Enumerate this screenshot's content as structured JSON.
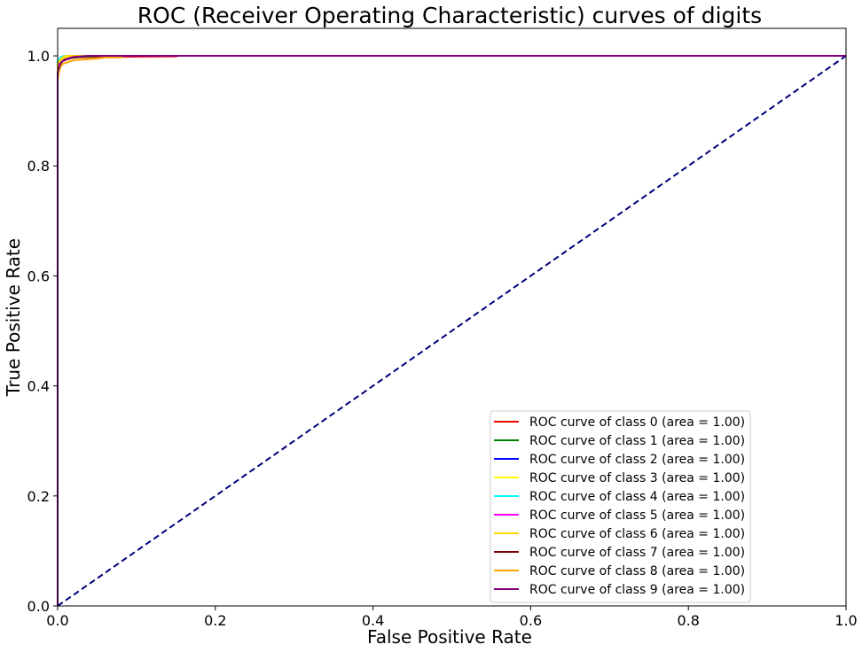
{
  "chart_data": {
    "type": "line",
    "title": "ROC (Receiver Operating Characteristic) curves of digits",
    "xlabel": "False Positive Rate",
    "ylabel": "True Positive Rate",
    "xlim": [
      0.0,
      1.0
    ],
    "ylim": [
      0.0,
      1.05
    ],
    "xticks": [
      "0.0",
      "0.2",
      "0.4",
      "0.6",
      "0.8",
      "1.0"
    ],
    "yticks": [
      "0.0",
      "0.2",
      "0.4",
      "0.6",
      "0.8",
      "1.0"
    ],
    "grid": false,
    "legend_position": "lower-right",
    "reference_line": {
      "x": [
        0,
        1
      ],
      "y": [
        0,
        1
      ],
      "color": "#000080",
      "style": "dashed"
    },
    "series": [
      {
        "name": "ROC curve of class 0 (area = 1.00)",
        "color": "#ff0000",
        "x": [
          0,
          0.0,
          0.002,
          0.004,
          0.01,
          0.02,
          0.05,
          0.15,
          0.153,
          1.0
        ],
        "y": [
          0,
          0.97,
          0.985,
          0.99,
          0.995,
          0.997,
          0.998,
          0.999,
          1.0,
          1.0
        ]
      },
      {
        "name": "ROC curve of class 1 (area = 1.00)",
        "color": "#008000",
        "x": [
          0,
          0.0,
          0.002,
          0.005,
          0.01,
          0.03,
          0.06,
          1.0
        ],
        "y": [
          0,
          0.975,
          0.985,
          0.99,
          0.995,
          0.998,
          1.0,
          1.0
        ]
      },
      {
        "name": "ROC curve of class 2 (area = 1.00)",
        "color": "#0000ff",
        "x": [
          0,
          0.0,
          0.002,
          0.006,
          0.012,
          0.03,
          1.0
        ],
        "y": [
          0,
          0.985,
          0.99,
          0.995,
          0.998,
          1.0,
          1.0
        ]
      },
      {
        "name": "ROC curve of class 3 (area = 1.00)",
        "color": "#ffff00",
        "x": [
          0,
          0.0,
          0.002,
          0.005,
          0.012,
          0.02,
          1.0
        ],
        "y": [
          0,
          0.98,
          0.988,
          0.993,
          0.998,
          1.0,
          1.0
        ]
      },
      {
        "name": "ROC curve of class 4 (area = 1.00)",
        "color": "#00ffff",
        "x": [
          0,
          0.0,
          0.002,
          0.004,
          0.008,
          1.0
        ],
        "y": [
          0,
          0.99,
          0.995,
          0.998,
          1.0,
          1.0
        ]
      },
      {
        "name": "ROC curve of class 5 (area = 1.00)",
        "color": "#ff00ff",
        "x": [
          0,
          0.0,
          0.002,
          0.006,
          0.015,
          0.03,
          1.0
        ],
        "y": [
          0,
          0.978,
          0.985,
          0.99,
          0.996,
          1.0,
          1.0
        ]
      },
      {
        "name": "ROC curve of class 6 (area = 1.00)",
        "color": "#ffd700",
        "x": [
          0,
          0.0,
          0.002,
          0.005,
          0.01,
          1.0
        ],
        "y": [
          0,
          0.985,
          0.99,
          0.996,
          1.0,
          1.0
        ]
      },
      {
        "name": "ROC curve of class 7 (area = 1.00)",
        "color": "#800000",
        "x": [
          0,
          0.0,
          0.002,
          0.003,
          0.006,
          0.01,
          0.02,
          0.04,
          1.0
        ],
        "y": [
          0,
          0.96,
          0.975,
          0.985,
          0.99,
          0.993,
          0.997,
          1.0,
          1.0
        ]
      },
      {
        "name": "ROC curve of class 8 (area = 1.00)",
        "color": "#ffa500",
        "x": [
          0,
          0.0,
          0.002,
          0.006,
          0.02,
          0.05,
          0.06,
          0.08,
          0.083,
          1.0
        ],
        "y": [
          0,
          0.955,
          0.975,
          0.985,
          0.992,
          0.995,
          0.997,
          0.997,
          1.0,
          1.0
        ]
      },
      {
        "name": "ROC curve of class 9 (area = 1.00)",
        "color": "#800080",
        "x": [
          0,
          0.0,
          0.002,
          0.004,
          0.008,
          0.02,
          0.04,
          1.0
        ],
        "y": [
          0,
          0.97,
          0.98,
          0.987,
          0.993,
          0.998,
          1.0,
          1.0
        ]
      }
    ]
  }
}
